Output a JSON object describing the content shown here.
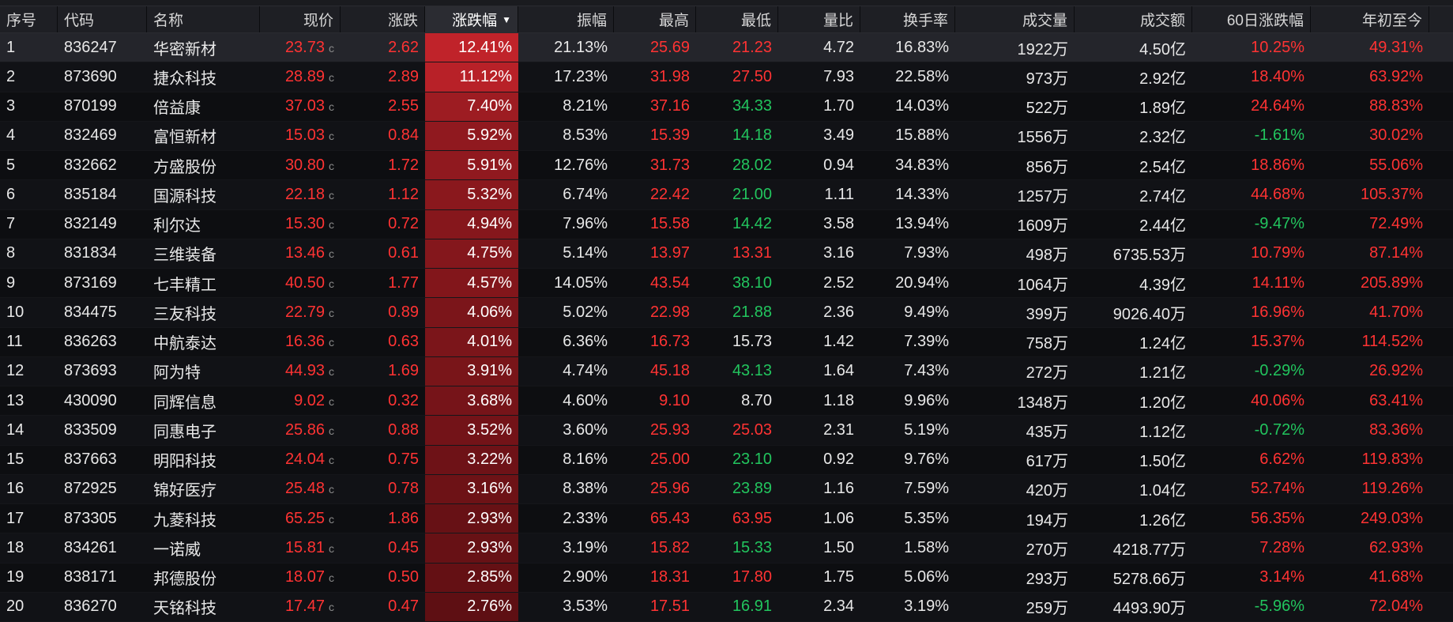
{
  "columns": [
    "序号",
    "代码",
    "名称",
    "现价",
    "涨跌",
    "涨跌幅",
    "振幅",
    "最高",
    "最低",
    "量比",
    "换手率",
    "成交量",
    "成交额",
    "60日涨跌幅",
    "年初至今"
  ],
  "sorted_column_index": 5,
  "price_suffix": "c",
  "colors": {
    "up": "#ff3333",
    "down": "#22c55e",
    "heat_max": "#c0232a",
    "heat_min": "#5e0f13"
  },
  "rows": [
    {
      "seq": "1",
      "code": "836247",
      "name": "华密新材",
      "price": "23.73",
      "change": "2.62",
      "pct": "12.41%",
      "pct_value": 12.41,
      "amplitude": "21.13%",
      "high": "25.69",
      "high_dir": "up",
      "low": "21.23",
      "low_dir": "up",
      "vol_ratio": "4.72",
      "turnover": "16.83%",
      "volume": "1922万",
      "amount": "4.50亿",
      "chg60": "10.25%",
      "chg60_dir": "up",
      "ytd": "49.31%",
      "ytd_dir": "up",
      "selected": true
    },
    {
      "seq": "2",
      "code": "873690",
      "name": "捷众科技",
      "price": "28.89",
      "change": "2.89",
      "pct": "11.12%",
      "pct_value": 11.12,
      "amplitude": "17.23%",
      "high": "31.98",
      "high_dir": "up",
      "low": "27.50",
      "low_dir": "up",
      "vol_ratio": "7.93",
      "turnover": "22.58%",
      "volume": "973万",
      "amount": "2.92亿",
      "chg60": "18.40%",
      "chg60_dir": "up",
      "ytd": "63.92%",
      "ytd_dir": "up"
    },
    {
      "seq": "3",
      "code": "870199",
      "name": "倍益康",
      "price": "37.03",
      "change": "2.55",
      "pct": "7.40%",
      "pct_value": 7.4,
      "amplitude": "8.21%",
      "high": "37.16",
      "high_dir": "up",
      "low": "34.33",
      "low_dir": "down",
      "vol_ratio": "1.70",
      "turnover": "14.03%",
      "volume": "522万",
      "amount": "1.89亿",
      "chg60": "24.64%",
      "chg60_dir": "up",
      "ytd": "88.83%",
      "ytd_dir": "up"
    },
    {
      "seq": "4",
      "code": "832469",
      "name": "富恒新材",
      "price": "15.03",
      "change": "0.84",
      "pct": "5.92%",
      "pct_value": 5.92,
      "amplitude": "8.53%",
      "high": "15.39",
      "high_dir": "up",
      "low": "14.18",
      "low_dir": "down",
      "vol_ratio": "3.49",
      "turnover": "15.88%",
      "volume": "1556万",
      "amount": "2.32亿",
      "chg60": "-1.61%",
      "chg60_dir": "down",
      "ytd": "30.02%",
      "ytd_dir": "up"
    },
    {
      "seq": "5",
      "code": "832662",
      "name": "方盛股份",
      "price": "30.80",
      "change": "1.72",
      "pct": "5.91%",
      "pct_value": 5.91,
      "amplitude": "12.76%",
      "high": "31.73",
      "high_dir": "up",
      "low": "28.02",
      "low_dir": "down",
      "vol_ratio": "0.94",
      "turnover": "34.83%",
      "volume": "856万",
      "amount": "2.54亿",
      "chg60": "18.86%",
      "chg60_dir": "up",
      "ytd": "55.06%",
      "ytd_dir": "up"
    },
    {
      "seq": "6",
      "code": "835184",
      "name": "国源科技",
      "price": "22.18",
      "change": "1.12",
      "pct": "5.32%",
      "pct_value": 5.32,
      "amplitude": "6.74%",
      "high": "22.42",
      "high_dir": "up",
      "low": "21.00",
      "low_dir": "down",
      "vol_ratio": "1.11",
      "turnover": "14.33%",
      "volume": "1257万",
      "amount": "2.74亿",
      "chg60": "44.68%",
      "chg60_dir": "up",
      "ytd": "105.37%",
      "ytd_dir": "up"
    },
    {
      "seq": "7",
      "code": "832149",
      "name": "利尔达",
      "price": "15.30",
      "change": "0.72",
      "pct": "4.94%",
      "pct_value": 4.94,
      "amplitude": "7.96%",
      "high": "15.58",
      "high_dir": "up",
      "low": "14.42",
      "low_dir": "down",
      "vol_ratio": "3.58",
      "turnover": "13.94%",
      "volume": "1609万",
      "amount": "2.44亿",
      "chg60": "-9.47%",
      "chg60_dir": "down",
      "ytd": "72.49%",
      "ytd_dir": "up"
    },
    {
      "seq": "8",
      "code": "831834",
      "name": "三维装备",
      "price": "13.46",
      "change": "0.61",
      "pct": "4.75%",
      "pct_value": 4.75,
      "amplitude": "5.14%",
      "high": "13.97",
      "high_dir": "up",
      "low": "13.31",
      "low_dir": "up",
      "vol_ratio": "3.16",
      "turnover": "7.93%",
      "volume": "498万",
      "amount": "6735.53万",
      "chg60": "10.79%",
      "chg60_dir": "up",
      "ytd": "87.14%",
      "ytd_dir": "up"
    },
    {
      "seq": "9",
      "code": "873169",
      "name": "七丰精工",
      "price": "40.50",
      "change": "1.77",
      "pct": "4.57%",
      "pct_value": 4.57,
      "amplitude": "14.05%",
      "high": "43.54",
      "high_dir": "up",
      "low": "38.10",
      "low_dir": "down",
      "vol_ratio": "2.52",
      "turnover": "20.94%",
      "volume": "1064万",
      "amount": "4.39亿",
      "chg60": "14.11%",
      "chg60_dir": "up",
      "ytd": "205.89%",
      "ytd_dir": "up"
    },
    {
      "seq": "10",
      "code": "834475",
      "name": "三友科技",
      "price": "22.79",
      "change": "0.89",
      "pct": "4.06%",
      "pct_value": 4.06,
      "amplitude": "5.02%",
      "high": "22.98",
      "high_dir": "up",
      "low": "21.88",
      "low_dir": "down",
      "vol_ratio": "2.36",
      "turnover": "9.49%",
      "volume": "399万",
      "amount": "9026.40万",
      "chg60": "16.96%",
      "chg60_dir": "up",
      "ytd": "41.70%",
      "ytd_dir": "up"
    },
    {
      "seq": "11",
      "code": "836263",
      "name": "中航泰达",
      "price": "16.36",
      "change": "0.63",
      "pct": "4.01%",
      "pct_value": 4.01,
      "amplitude": "6.36%",
      "high": "16.73",
      "high_dir": "up",
      "low": "15.73",
      "low_dir": "flat",
      "vol_ratio": "1.42",
      "turnover": "7.39%",
      "volume": "758万",
      "amount": "1.24亿",
      "chg60": "15.37%",
      "chg60_dir": "up",
      "ytd": "114.52%",
      "ytd_dir": "up"
    },
    {
      "seq": "12",
      "code": "873693",
      "name": "阿为特",
      "price": "44.93",
      "change": "1.69",
      "pct": "3.91%",
      "pct_value": 3.91,
      "amplitude": "4.74%",
      "high": "45.18",
      "high_dir": "up",
      "low": "43.13",
      "low_dir": "down",
      "vol_ratio": "1.64",
      "turnover": "7.43%",
      "volume": "272万",
      "amount": "1.21亿",
      "chg60": "-0.29%",
      "chg60_dir": "down",
      "ytd": "26.92%",
      "ytd_dir": "up"
    },
    {
      "seq": "13",
      "code": "430090",
      "name": "同辉信息",
      "price": "9.02",
      "change": "0.32",
      "pct": "3.68%",
      "pct_value": 3.68,
      "amplitude": "4.60%",
      "high": "9.10",
      "high_dir": "up",
      "low": "8.70",
      "low_dir": "flat",
      "vol_ratio": "1.18",
      "turnover": "9.96%",
      "volume": "1348万",
      "amount": "1.20亿",
      "chg60": "40.06%",
      "chg60_dir": "up",
      "ytd": "63.41%",
      "ytd_dir": "up"
    },
    {
      "seq": "14",
      "code": "833509",
      "name": "同惠电子",
      "price": "25.86",
      "change": "0.88",
      "pct": "3.52%",
      "pct_value": 3.52,
      "amplitude": "3.60%",
      "high": "25.93",
      "high_dir": "up",
      "low": "25.03",
      "low_dir": "up",
      "vol_ratio": "2.31",
      "turnover": "5.19%",
      "volume": "435万",
      "amount": "1.12亿",
      "chg60": "-0.72%",
      "chg60_dir": "down",
      "ytd": "83.36%",
      "ytd_dir": "up"
    },
    {
      "seq": "15",
      "code": "837663",
      "name": "明阳科技",
      "price": "24.04",
      "change": "0.75",
      "pct": "3.22%",
      "pct_value": 3.22,
      "amplitude": "8.16%",
      "high": "25.00",
      "high_dir": "up",
      "low": "23.10",
      "low_dir": "down",
      "vol_ratio": "0.92",
      "turnover": "9.76%",
      "volume": "617万",
      "amount": "1.50亿",
      "chg60": "6.62%",
      "chg60_dir": "up",
      "ytd": "119.83%",
      "ytd_dir": "up"
    },
    {
      "seq": "16",
      "code": "872925",
      "name": "锦好医疗",
      "price": "25.48",
      "change": "0.78",
      "pct": "3.16%",
      "pct_value": 3.16,
      "amplitude": "8.38%",
      "high": "25.96",
      "high_dir": "up",
      "low": "23.89",
      "low_dir": "down",
      "vol_ratio": "1.16",
      "turnover": "7.59%",
      "volume": "420万",
      "amount": "1.04亿",
      "chg60": "52.74%",
      "chg60_dir": "up",
      "ytd": "119.26%",
      "ytd_dir": "up"
    },
    {
      "seq": "17",
      "code": "873305",
      "name": "九菱科技",
      "price": "65.25",
      "change": "1.86",
      "pct": "2.93%",
      "pct_value": 2.93,
      "amplitude": "2.33%",
      "high": "65.43",
      "high_dir": "up",
      "low": "63.95",
      "low_dir": "up",
      "vol_ratio": "1.06",
      "turnover": "5.35%",
      "volume": "194万",
      "amount": "1.26亿",
      "chg60": "56.35%",
      "chg60_dir": "up",
      "ytd": "249.03%",
      "ytd_dir": "up"
    },
    {
      "seq": "18",
      "code": "834261",
      "name": "一诺威",
      "price": "15.81",
      "change": "0.45",
      "pct": "2.93%",
      "pct_value": 2.93,
      "amplitude": "3.19%",
      "high": "15.82",
      "high_dir": "up",
      "low": "15.33",
      "low_dir": "down",
      "vol_ratio": "1.50",
      "turnover": "1.58%",
      "volume": "270万",
      "amount": "4218.77万",
      "chg60": "7.28%",
      "chg60_dir": "up",
      "ytd": "62.93%",
      "ytd_dir": "up"
    },
    {
      "seq": "19",
      "code": "838171",
      "name": "邦德股份",
      "price": "18.07",
      "change": "0.50",
      "pct": "2.85%",
      "pct_value": 2.85,
      "amplitude": "2.90%",
      "high": "18.31",
      "high_dir": "up",
      "low": "17.80",
      "low_dir": "up",
      "vol_ratio": "1.75",
      "turnover": "5.06%",
      "volume": "293万",
      "amount": "5278.66万",
      "chg60": "3.14%",
      "chg60_dir": "up",
      "ytd": "41.68%",
      "ytd_dir": "up"
    },
    {
      "seq": "20",
      "code": "836270",
      "name": "天铭科技",
      "price": "17.47",
      "change": "0.47",
      "pct": "2.76%",
      "pct_value": 2.76,
      "amplitude": "3.53%",
      "high": "17.51",
      "high_dir": "up",
      "low": "16.91",
      "low_dir": "down",
      "vol_ratio": "2.34",
      "turnover": "3.19%",
      "volume": "259万",
      "amount": "4493.90万",
      "chg60": "-5.96%",
      "chg60_dir": "down",
      "ytd": "72.04%",
      "ytd_dir": "up"
    }
  ]
}
